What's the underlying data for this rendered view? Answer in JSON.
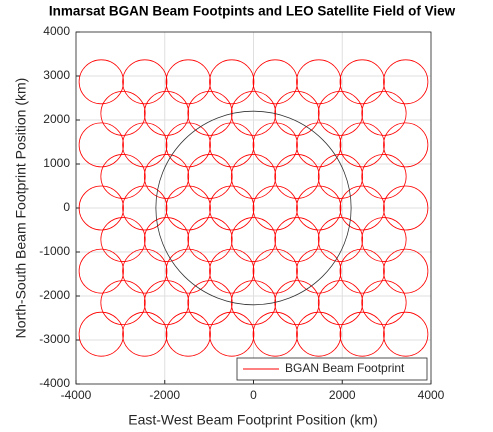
{
  "chart_data": {
    "type": "circles",
    "title": "Inmarsat BGAN Beam Footpints and LEO Satellite Field of View",
    "xlabel": "East-West Beam Footprint Position (km)",
    "ylabel": "North-South Beam Footprint Position (km)",
    "xlim": [
      -4000,
      4000
    ],
    "ylim": [
      -4000,
      4000
    ],
    "xticks": [
      -4000,
      -2000,
      0,
      2000,
      4000
    ],
    "yticks": [
      -4000,
      -3000,
      -2000,
      -1000,
      0,
      1000,
      2000,
      3000,
      4000
    ],
    "grid": true,
    "legend": "lower right",
    "series": [
      {
        "name": "BGAN Beam Footprint",
        "color": "#ff0000",
        "radius": 500,
        "x": [
          -3430,
          -2450,
          -1470,
          -490,
          490,
          1470,
          2450,
          3430,
          -2940,
          -1960,
          -980,
          0,
          980,
          1960,
          2940,
          -3430,
          -2450,
          -1470,
          -490,
          490,
          1470,
          2450,
          3430,
          -2940,
          -1960,
          -980,
          0,
          980,
          1960,
          2940,
          -3430,
          -2450,
          -1470,
          -490,
          490,
          1470,
          2450,
          3430,
          -2940,
          -1960,
          -980,
          0,
          980,
          1960,
          2940,
          -3430,
          -2450,
          -1470,
          -490,
          490,
          1470,
          2450,
          3430,
          -2940,
          -1960,
          -980,
          0,
          980,
          1960,
          2940,
          -3430,
          -2450,
          -1470,
          -490,
          490,
          1470,
          2450,
          3430
        ],
        "values": [
          2868,
          2868,
          2868,
          2868,
          2868,
          2868,
          2868,
          2868,
          2151,
          2151,
          2151,
          2151,
          2151,
          2151,
          2151,
          1434,
          1434,
          1434,
          1434,
          1434,
          1434,
          1434,
          1434,
          717,
          717,
          717,
          717,
          717,
          717,
          717,
          0,
          0,
          0,
          0,
          0,
          0,
          0,
          0,
          -717,
          -717,
          -717,
          -717,
          -717,
          -717,
          -717,
          -1434,
          -1434,
          -1434,
          -1434,
          -1434,
          -1434,
          -1434,
          -1434,
          -2151,
          -2151,
          -2151,
          -2151,
          -2151,
          -2151,
          -2151,
          -2868,
          -2868,
          -2868,
          -2868,
          -2868,
          -2868,
          -2868,
          -2868
        ]
      },
      {
        "color": "#333333",
        "radius": 2200,
        "x": [
          0
        ],
        "values": [
          0
        ]
      }
    ]
  }
}
